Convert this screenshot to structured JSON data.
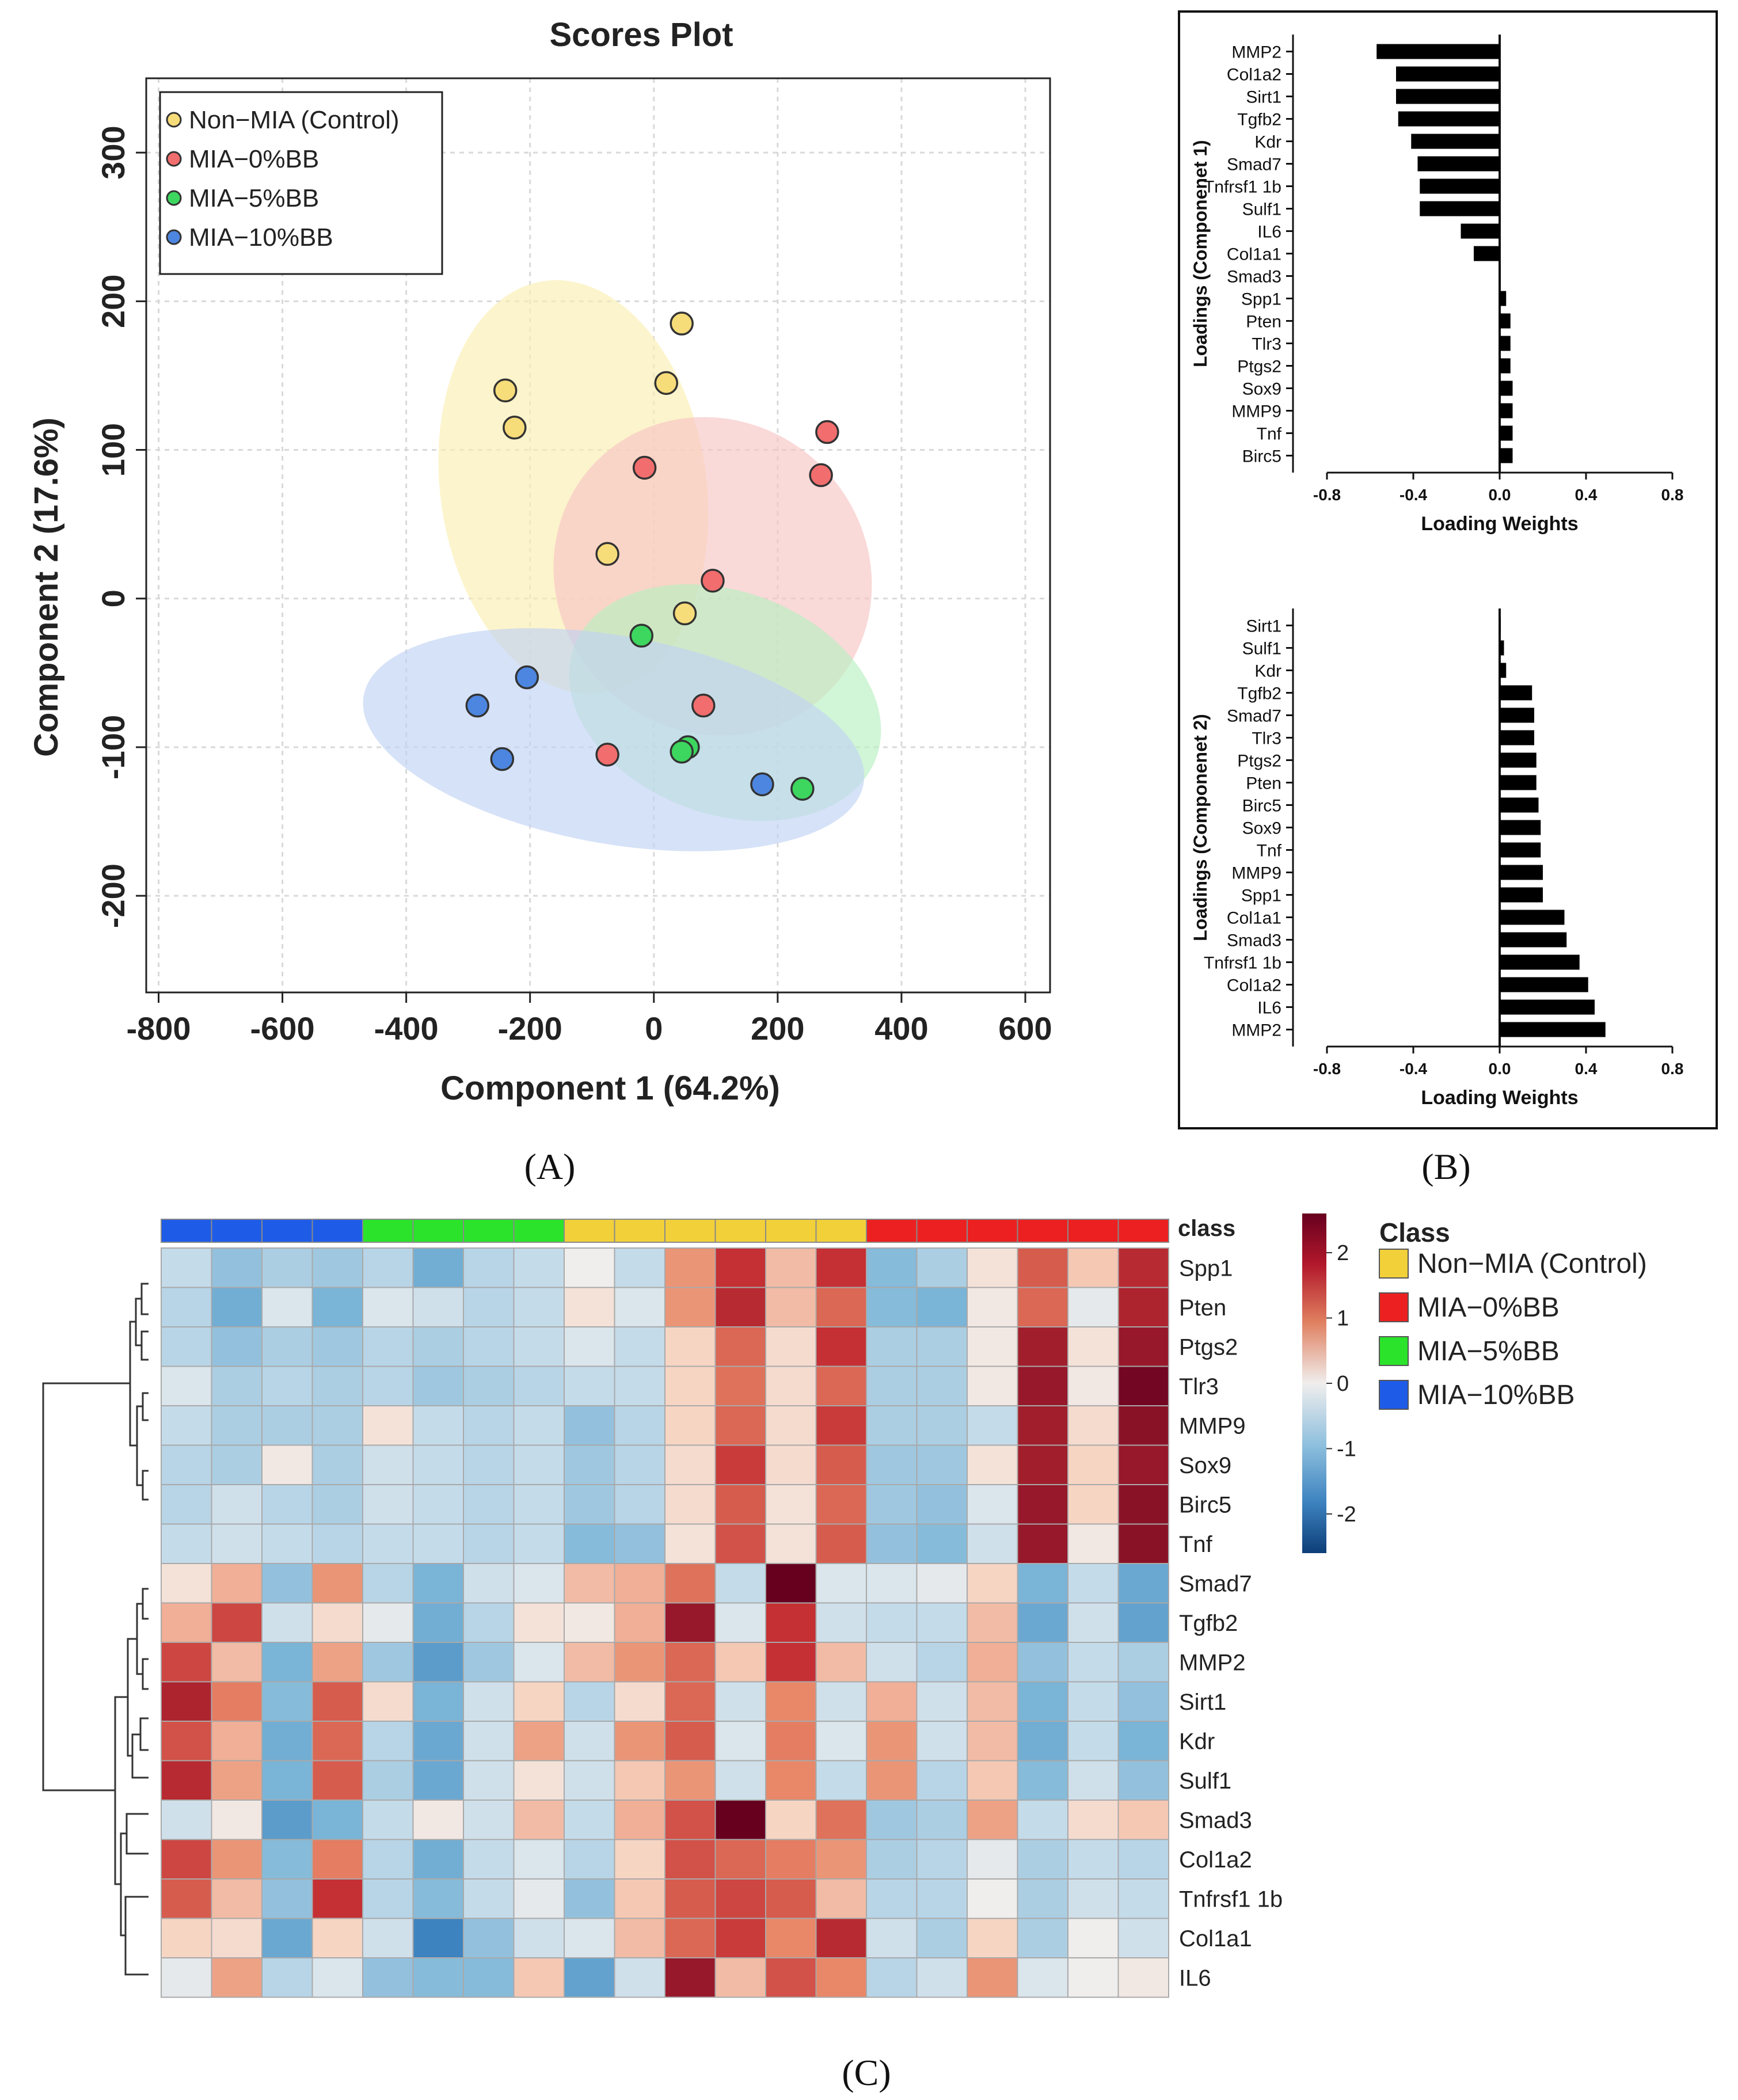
{
  "panel_labels": {
    "a": "(A)",
    "b": "(B)",
    "c": "(C)"
  },
  "chart_data": [
    {
      "id": "scores",
      "type": "scatter",
      "title": "Scores Plot",
      "xlabel": "Component 1 (64.2%)",
      "ylabel": "Component 2 (17.6%)",
      "xlim": [
        -820,
        640
      ],
      "ylim": [
        -265,
        350
      ],
      "xticks": [
        -800,
        -600,
        -400,
        -200,
        0,
        200,
        400,
        600
      ],
      "yticks": [
        -200,
        -100,
        0,
        100,
        200,
        300
      ],
      "grid": true,
      "legend_position": "top-left",
      "series": [
        {
          "name": "Non−MIA (Control)",
          "color": "#f7dc7a",
          "ellipse": {
            "cx": -130,
            "cy": 75,
            "rx": 215,
            "ry": 140,
            "angle": 8,
            "fill": "#fbeeb0"
          },
          "points": [
            [
              -240,
              140
            ],
            [
              -225,
              115
            ],
            [
              45,
              185
            ],
            [
              20,
              145
            ],
            [
              -75,
              30
            ],
            [
              50,
              -10
            ]
          ]
        },
        {
          "name": "MIA−0%BB",
          "color": "#f26d6d",
          "ellipse": {
            "cx": 95,
            "cy": 15,
            "rx": 250,
            "ry": 110,
            "angle": 45,
            "fill": "#f8c4c4"
          },
          "points": [
            [
              -15,
              88
            ],
            [
              280,
              112
            ],
            [
              270,
              83
            ],
            [
              95,
              12
            ],
            [
              80,
              -72
            ],
            [
              -75,
              -105
            ]
          ]
        },
        {
          "name": "MIA−5%BB",
          "color": "#3dd65f",
          "ellipse": {
            "cx": 115,
            "cy": -70,
            "rx": 260,
            "ry": 75,
            "angle": -20,
            "fill": "#b8f0c1"
          },
          "points": [
            [
              -20,
              -25
            ],
            [
              55,
              -100
            ],
            [
              45,
              -103
            ],
            [
              240,
              -128
            ]
          ]
        },
        {
          "name": "MIA−10%BB",
          "color": "#4d86e0",
          "ellipse": {
            "cx": -65,
            "cy": -95,
            "rx": 410,
            "ry": 70,
            "angle": -10,
            "fill": "#c0d3f3"
          },
          "points": [
            [
              -285,
              -72
            ],
            [
              -205,
              -53
            ],
            [
              -245,
              -108
            ],
            [
              175,
              -125
            ]
          ]
        }
      ]
    },
    {
      "id": "loadings1",
      "type": "bar",
      "orientation": "horizontal",
      "xlabel": "Loading Weights",
      "ylabel": "Loadings (Componenet 1)",
      "xlim": [
        -0.8,
        0.8
      ],
      "xticks": [
        -0.8,
        -0.4,
        0.0,
        0.4,
        0.8
      ],
      "xtick_labels": [
        "-0.8",
        "-0.4",
        "0.0",
        "0.4",
        "0.8"
      ],
      "categories": [
        "MMP2",
        "Col1a2",
        "Sirt1",
        "Tgfb2",
        "Kdr",
        "Smad7",
        "Tnfrsf1 1b",
        "Sulf1",
        "IL6",
        "Col1a1",
        "Smad3",
        "Spp1",
        "Pten",
        "Tlr3",
        "Ptgs2",
        "Sox9",
        "MMP9",
        "Tnf",
        "Birc5"
      ],
      "values": [
        -0.57,
        -0.48,
        -0.48,
        -0.47,
        -0.41,
        -0.38,
        -0.37,
        -0.37,
        -0.18,
        -0.12,
        0.0,
        0.03,
        0.05,
        0.05,
        0.05,
        0.06,
        0.06,
        0.06,
        0.06
      ]
    },
    {
      "id": "loadings2",
      "type": "bar",
      "orientation": "horizontal",
      "xlabel": "Loading Weights",
      "ylabel": "Loadings (Componenet 2)",
      "xlim": [
        -0.8,
        0.8
      ],
      "xticks": [
        -0.8,
        -0.4,
        0.0,
        0.4,
        0.8
      ],
      "xtick_labels": [
        "-0.8",
        "-0.4",
        "0.0",
        "0.4",
        "0.8"
      ],
      "categories": [
        "Sirt1",
        "Sulf1",
        "Kdr",
        "Tgfb2",
        "Smad7",
        "Tlr3",
        "Ptgs2",
        "Pten",
        "Birc5",
        "Sox9",
        "Tnf",
        "MMP9",
        "Spp1",
        "Col1a1",
        "Smad3",
        "Tnfrsf1 1b",
        "Col1a2",
        "IL6",
        "MMP2"
      ],
      "values": [
        0.005,
        0.02,
        0.03,
        0.15,
        0.16,
        0.16,
        0.17,
        0.17,
        0.18,
        0.19,
        0.19,
        0.2,
        0.2,
        0.3,
        0.31,
        0.37,
        0.41,
        0.44,
        0.49
      ]
    },
    {
      "id": "heatmap",
      "type": "heatmap",
      "class_header": "class",
      "column_classes": [
        3,
        3,
        3,
        3,
        2,
        2,
        2,
        2,
        0,
        0,
        0,
        0,
        0,
        0,
        1,
        1,
        1,
        1,
        1,
        1
      ],
      "classes": [
        {
          "name": "Non−MIA (Control)",
          "color": "#f2d03a"
        },
        {
          "name": "MIA−0%BB",
          "color": "#ec2020"
        },
        {
          "name": "MIA−5%BB",
          "color": "#2be32b"
        },
        {
          "name": "MIA−10%BB",
          "color": "#1e5ce8"
        }
      ],
      "legend_title": "Class",
      "colorbar_ticks": [
        2,
        1,
        0,
        -1,
        -2
      ],
      "colorbar_labels": [
        "2",
        "1",
        "0",
        "-1",
        "-2"
      ],
      "colorbar_range": [
        -2.6,
        2.6
      ],
      "rows": [
        "Spp1",
        "Pten",
        "Ptgs2",
        "Tlr3",
        "MMP9",
        "Sox9",
        "Birc5",
        "Tnf",
        "Smad7",
        "Tgfb2",
        "MMP2",
        "Sirt1",
        "Kdr",
        "Sulf1",
        "Smad3",
        "Col1a2",
        "Tnfrsf1 1b",
        "Col1a1",
        "IL6"
      ],
      "values": [
        [
          -0.4,
          -0.8,
          -0.6,
          -0.7,
          -0.5,
          -1.1,
          -0.5,
          -0.4,
          0.0,
          -0.4,
          0.9,
          1.8,
          0.6,
          1.8,
          -0.9,
          -0.6,
          0.2,
          1.4,
          0.5,
          1.9
        ],
        [
          -0.5,
          -1.1,
          -0.2,
          -1.0,
          -0.2,
          -0.3,
          -0.5,
          -0.4,
          0.2,
          -0.2,
          0.9,
          1.9,
          0.6,
          1.3,
          -0.9,
          -1.0,
          0.1,
          1.3,
          -0.1,
          2.0
        ],
        [
          -0.5,
          -0.8,
          -0.6,
          -0.7,
          -0.5,
          -0.6,
          -0.5,
          -0.4,
          -0.2,
          -0.4,
          0.4,
          1.3,
          0.3,
          1.8,
          -0.6,
          -0.6,
          0.1,
          2.1,
          0.2,
          2.2
        ],
        [
          -0.2,
          -0.6,
          -0.5,
          -0.6,
          -0.5,
          -0.7,
          -0.6,
          -0.5,
          -0.4,
          -0.4,
          0.4,
          1.2,
          0.3,
          1.3,
          -0.6,
          -0.6,
          0.1,
          2.2,
          0.1,
          2.5
        ],
        [
          -0.4,
          -0.6,
          -0.6,
          -0.6,
          0.2,
          -0.4,
          -0.5,
          -0.4,
          -0.8,
          -0.5,
          0.4,
          1.3,
          0.3,
          1.7,
          -0.6,
          -0.6,
          -0.4,
          2.1,
          0.3,
          2.3
        ],
        [
          -0.5,
          -0.6,
          0.1,
          -0.6,
          -0.3,
          -0.4,
          -0.5,
          -0.4,
          -0.7,
          -0.5,
          0.3,
          1.7,
          0.3,
          1.4,
          -0.7,
          -0.7,
          0.2,
          2.1,
          0.4,
          2.2
        ],
        [
          -0.5,
          -0.3,
          -0.5,
          -0.6,
          -0.3,
          -0.4,
          -0.5,
          -0.4,
          -0.7,
          -0.5,
          0.3,
          1.4,
          0.2,
          1.3,
          -0.7,
          -0.8,
          -0.2,
          2.2,
          0.4,
          2.3
        ],
        [
          -0.4,
          -0.3,
          -0.4,
          -0.5,
          -0.4,
          -0.4,
          -0.5,
          -0.4,
          -0.9,
          -0.8,
          0.2,
          1.5,
          0.2,
          1.4,
          -0.8,
          -0.9,
          -0.3,
          2.2,
          0.1,
          2.3
        ],
        [
          0.2,
          0.7,
          -0.8,
          0.9,
          -0.5,
          -1.0,
          -0.3,
          -0.2,
          0.6,
          0.7,
          1.2,
          -0.4,
          2.6,
          -0.2,
          -0.2,
          -0.1,
          0.4,
          -1.0,
          -0.4,
          -1.2
        ],
        [
          0.7,
          1.6,
          -0.3,
          0.3,
          -0.1,
          -1.1,
          -0.5,
          0.2,
          0.1,
          0.7,
          2.2,
          -0.2,
          1.8,
          -0.3,
          -0.4,
          -0.4,
          0.6,
          -1.2,
          -0.3,
          -1.3
        ],
        [
          1.6,
          0.6,
          -1.0,
          0.8,
          -0.7,
          -1.4,
          -0.7,
          -0.2,
          0.6,
          0.9,
          1.3,
          0.5,
          1.8,
          0.6,
          -0.3,
          -0.5,
          0.7,
          -0.8,
          -0.4,
          -0.6
        ],
        [
          2.0,
          1.1,
          -0.9,
          1.4,
          0.3,
          -1.0,
          -0.3,
          0.4,
          -0.5,
          0.3,
          1.3,
          -0.3,
          1.0,
          -0.3,
          0.7,
          -0.3,
          0.6,
          -1.0,
          -0.4,
          -0.8
        ],
        [
          1.5,
          0.7,
          -1.1,
          1.3,
          -0.5,
          -1.2,
          -0.3,
          0.8,
          -0.3,
          0.9,
          1.4,
          -0.2,
          1.1,
          -0.2,
          0.9,
          -0.3,
          0.6,
          -1.1,
          -0.4,
          -1.0
        ],
        [
          1.9,
          0.8,
          -1.0,
          1.4,
          -0.6,
          -1.2,
          -0.3,
          0.2,
          -0.3,
          0.5,
          0.9,
          -0.3,
          1.0,
          -0.4,
          0.9,
          -0.5,
          0.5,
          -0.9,
          -0.3,
          -0.8
        ],
        [
          -0.3,
          0.1,
          -1.4,
          -1.0,
          -0.4,
          0.1,
          -0.3,
          0.6,
          -0.4,
          0.7,
          1.5,
          2.6,
          0.4,
          1.2,
          -0.7,
          -0.6,
          0.8,
          -0.4,
          0.3,
          0.5
        ],
        [
          1.6,
          0.9,
          -0.9,
          1.1,
          -0.5,
          -1.1,
          -0.4,
          -0.2,
          -0.5,
          0.4,
          1.5,
          1.3,
          1.1,
          0.9,
          -0.6,
          -0.5,
          -0.1,
          -0.6,
          -0.4,
          -0.5
        ],
        [
          1.4,
          0.6,
          -0.8,
          1.8,
          -0.5,
          -0.9,
          -0.4,
          -0.1,
          -0.8,
          0.5,
          1.4,
          1.6,
          1.4,
          0.6,
          -0.5,
          -0.5,
          0.0,
          -0.6,
          -0.3,
          -0.4
        ],
        [
          0.4,
          0.3,
          -1.2,
          0.4,
          -0.3,
          -1.8,
          -0.8,
          -0.3,
          -0.2,
          0.6,
          1.3,
          1.7,
          1.0,
          1.9,
          -0.3,
          -0.6,
          0.4,
          -0.6,
          0.0,
          -0.3
        ],
        [
          -0.1,
          0.8,
          -0.5,
          -0.2,
          -0.8,
          -0.9,
          -0.9,
          0.5,
          -1.3,
          -0.3,
          2.2,
          0.6,
          1.5,
          1.0,
          -0.5,
          -0.3,
          0.9,
          -0.2,
          0.0,
          0.1
        ]
      ]
    }
  ]
}
